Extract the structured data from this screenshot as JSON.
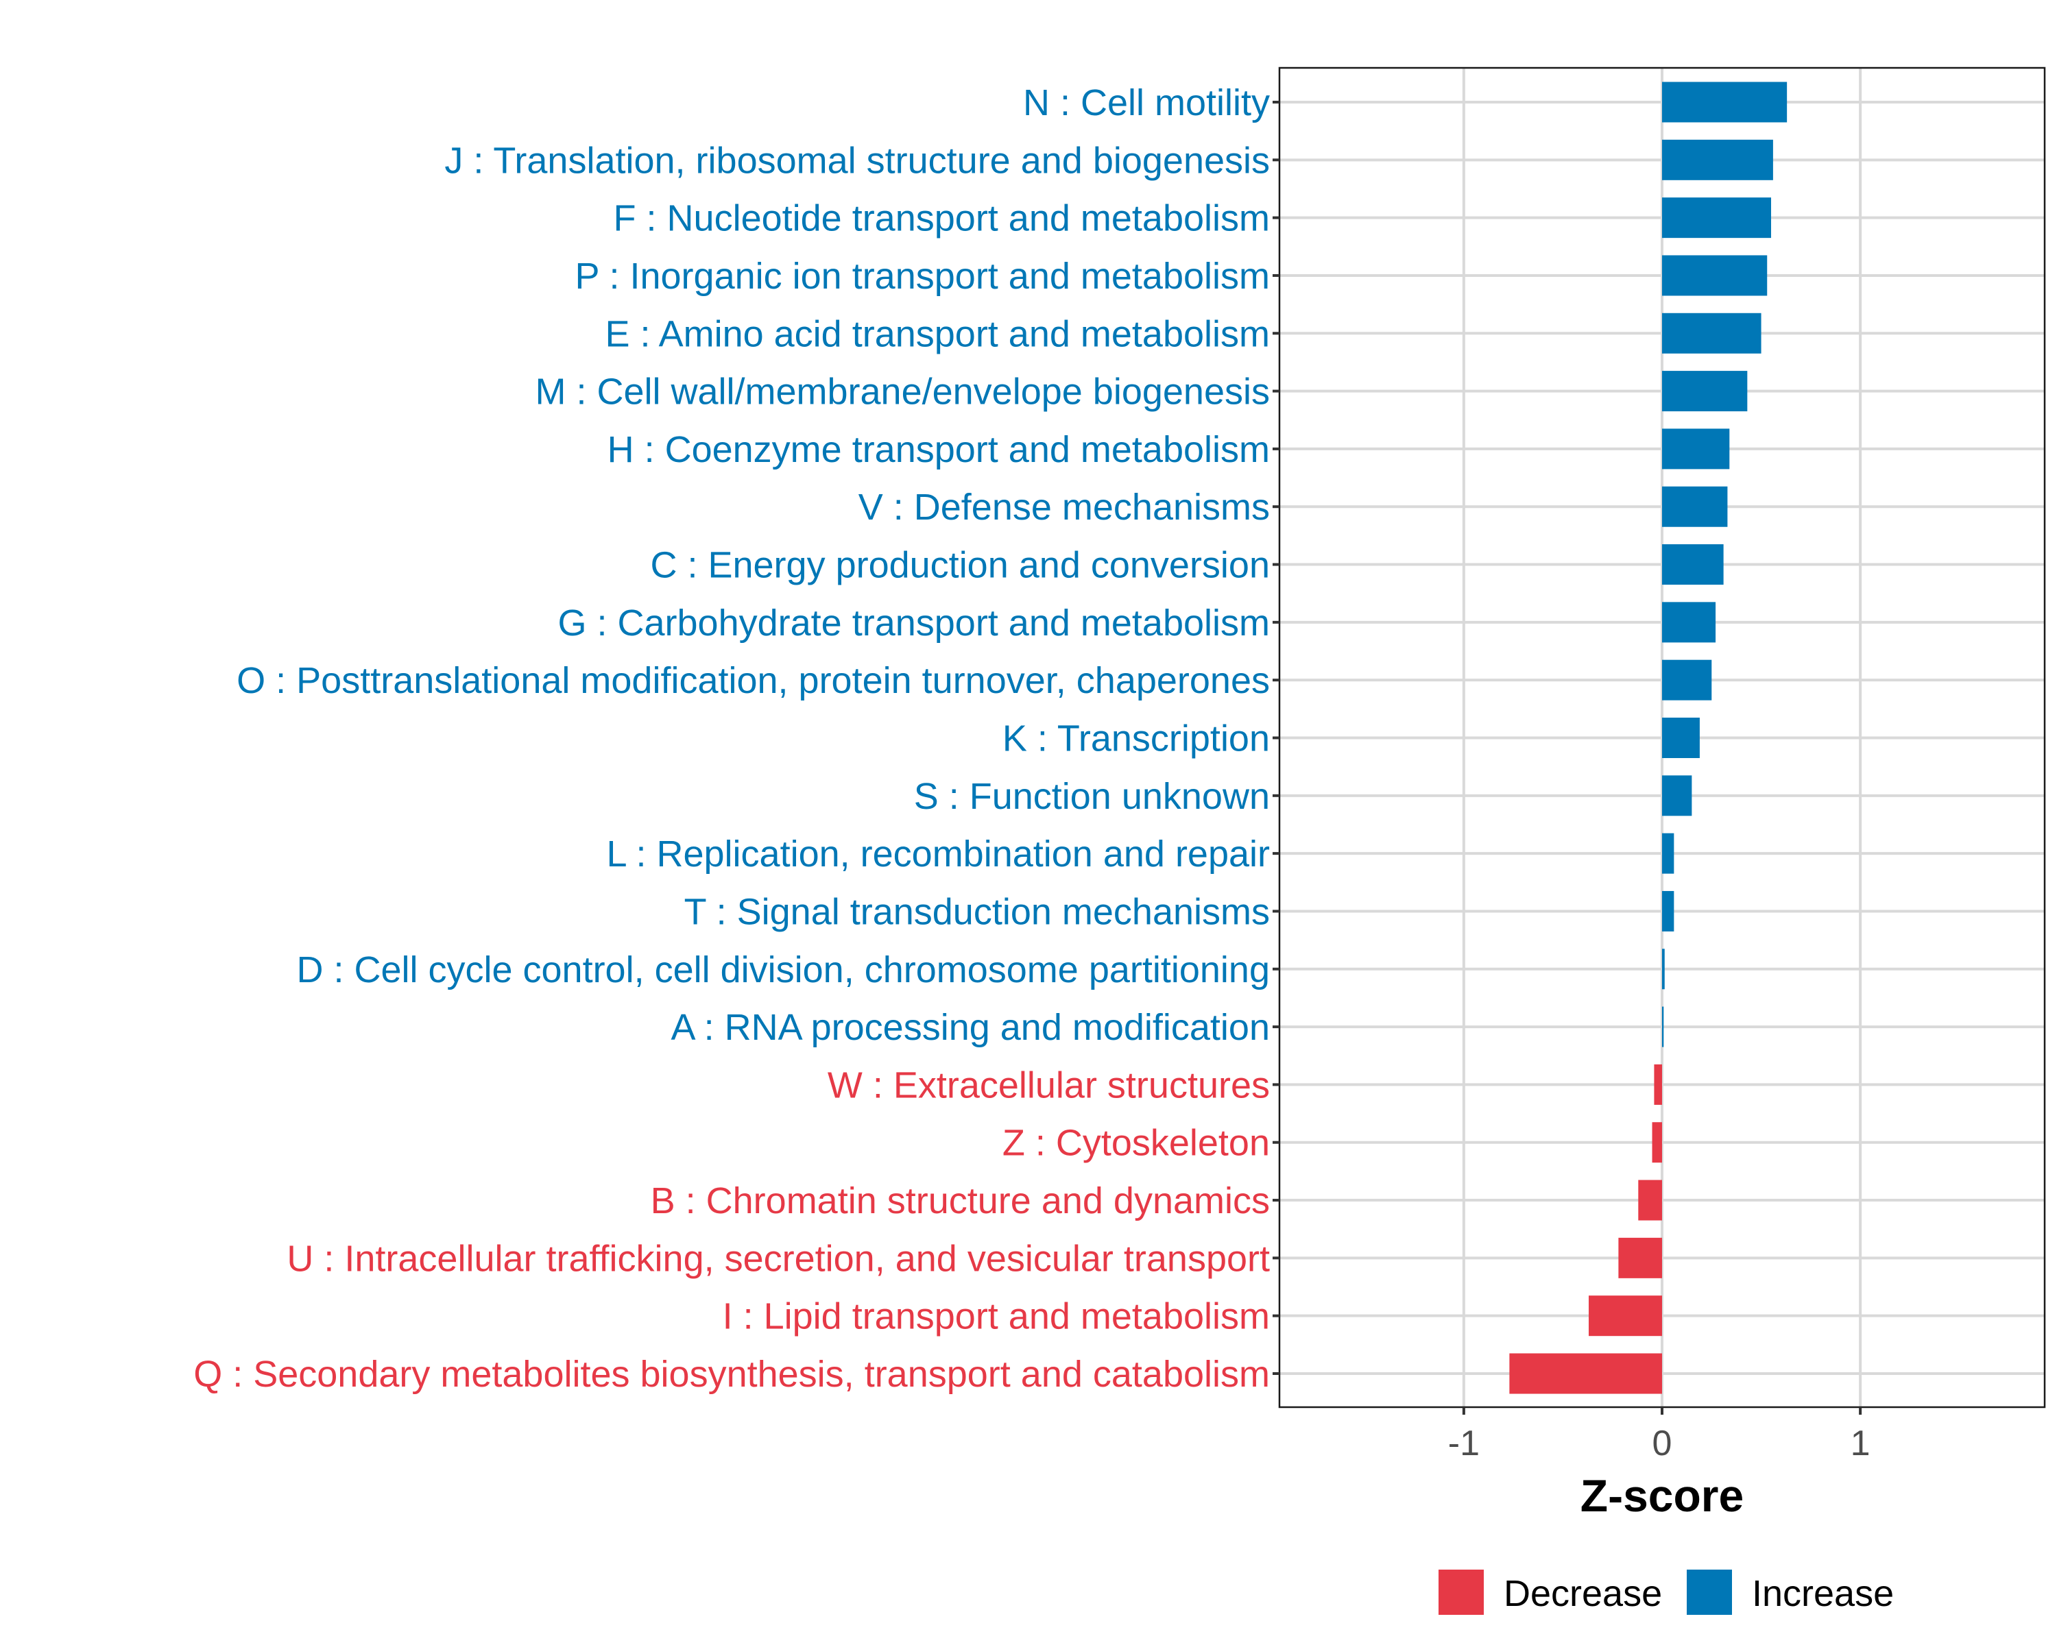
{
  "chart_data": {
    "type": "bar",
    "orientation": "horizontal",
    "title": "",
    "xlabel": "Z-score",
    "ylabel": "",
    "xlim": [
      -1.93,
      1.93
    ],
    "xticks": [
      -1,
      0,
      1
    ],
    "xtick_labels": [
      "-1",
      "0",
      "1"
    ],
    "grid": true,
    "legend": {
      "placement": "bottom",
      "entries": [
        {
          "name": "Decrease",
          "color": "#E63946"
        },
        {
          "name": "Increase",
          "color": "#0077B6"
        }
      ]
    },
    "colors": {
      "Decrease": "#E63946",
      "Increase": "#0077B6"
    },
    "categories": [
      "N : Cell motility",
      "J : Translation, ribosomal structure and biogenesis",
      "F : Nucleotide transport and metabolism",
      "P : Inorganic ion transport and metabolism",
      "E : Amino acid transport and metabolism",
      "M : Cell wall/membrane/envelope biogenesis",
      "H : Coenzyme transport and metabolism",
      "V : Defense mechanisms",
      "C : Energy production and conversion",
      "G : Carbohydrate transport and metabolism",
      "O : Posttranslational modification, protein turnover, chaperones",
      "K : Transcription",
      "S : Function unknown",
      "L : Replication, recombination and repair",
      "T : Signal transduction mechanisms",
      "D : Cell cycle control, cell division, chromosome partitioning",
      "A : RNA processing and modification",
      "W : Extracellular structures",
      "Z : Cytoskeleton",
      "B : Chromatin structure and dynamics",
      "U : Intracellular trafficking, secretion, and vesicular transport",
      "I : Lipid transport and metabolism",
      "Q : Secondary metabolites biosynthesis, transport and catabolism"
    ],
    "values": [
      0.63,
      0.56,
      0.55,
      0.53,
      0.5,
      0.43,
      0.34,
      0.33,
      0.31,
      0.27,
      0.25,
      0.19,
      0.15,
      0.06,
      0.06,
      0.013,
      0.008,
      -0.04,
      -0.05,
      -0.12,
      -0.22,
      -0.37,
      -0.77
    ],
    "groups": [
      "Increase",
      "Increase",
      "Increase",
      "Increase",
      "Increase",
      "Increase",
      "Increase",
      "Increase",
      "Increase",
      "Increase",
      "Increase",
      "Increase",
      "Increase",
      "Increase",
      "Increase",
      "Increase",
      "Increase",
      "Decrease",
      "Decrease",
      "Decrease",
      "Decrease",
      "Decrease",
      "Decrease"
    ]
  }
}
